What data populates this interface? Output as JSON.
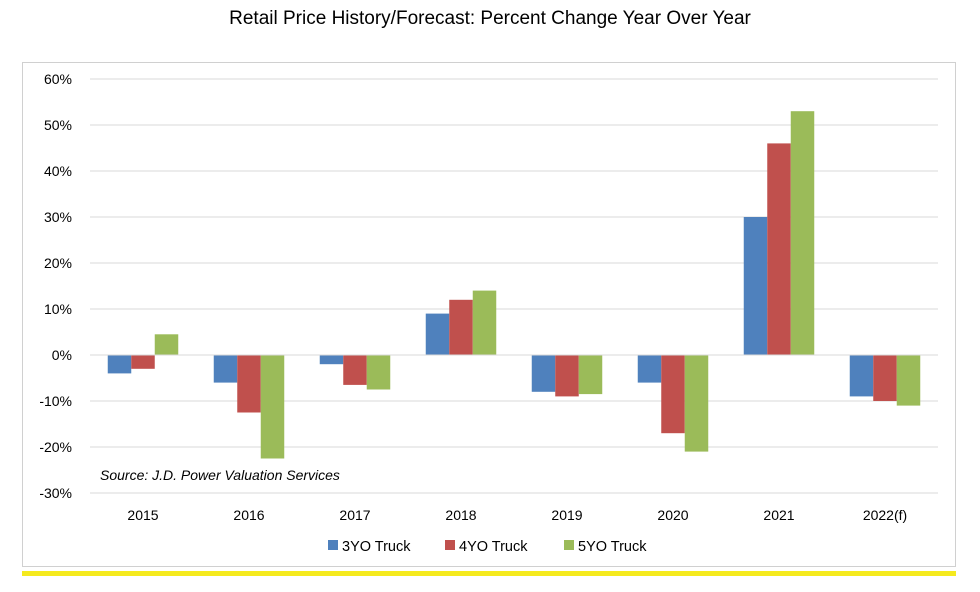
{
  "chart_data": {
    "type": "bar",
    "title": "Retail Price History/Forecast: Percent Change Year Over Year",
    "categories": [
      "2015",
      "2016",
      "2017",
      "2018",
      "2019",
      "2020",
      "2021",
      "2022(f)"
    ],
    "series": [
      {
        "name": "3YO Truck",
        "color": "#4f81bd",
        "values": [
          -4,
          -6,
          -2,
          9,
          -8,
          -6,
          30,
          -9
        ]
      },
      {
        "name": "4YO Truck",
        "color": "#c0504d",
        "values": [
          -3,
          -12.5,
          -6.5,
          12,
          -9,
          -17,
          46,
          -10
        ]
      },
      {
        "name": "5YO Truck",
        "color": "#9bbb59",
        "values": [
          4.5,
          -22.5,
          -7.5,
          14,
          -8.5,
          -21,
          53,
          -11
        ]
      }
    ],
    "ylim": [
      -30,
      60
    ],
    "yticks": [
      60,
      50,
      40,
      30,
      20,
      10,
      0,
      -10,
      -20,
      -30
    ],
    "ytick_labels": [
      "60%",
      "50%",
      "40%",
      "30%",
      "20%",
      "10%",
      "0%",
      "-10%",
      "-20%",
      "-30%"
    ],
    "xlabel": "",
    "ylabel": "",
    "grid": true,
    "legend_position": "bottom",
    "annotation": "Source: J.D. Power Valuation Services"
  }
}
